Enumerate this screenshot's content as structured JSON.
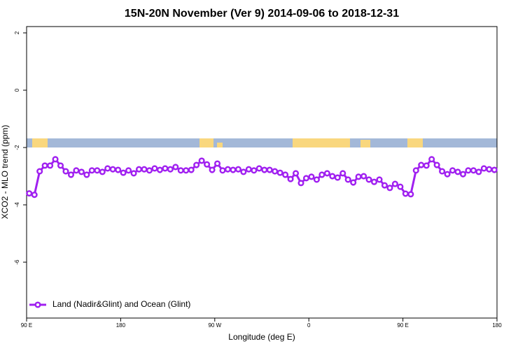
{
  "chart_data": {
    "type": "line",
    "title": "15N-20N November (Ver 9)   2014-09-06 to 2018-12-31",
    "x_label": "Longitude (deg E)",
    "y_label": "XCO2 - MLO trend (ppm)",
    "xlim": [
      90,
      540
    ],
    "xticks": [
      {
        "value": 90,
        "label": "90 E"
      },
      {
        "value": 180,
        "label": "180"
      },
      {
        "value": 270,
        "label": "90 W"
      },
      {
        "value": 360,
        "label": "0"
      },
      {
        "value": 450,
        "label": "90 E"
      },
      {
        "value": 540,
        "label": "180"
      }
    ],
    "ylim": [
      -7.95,
      2.22
    ],
    "yticks": [
      2,
      0,
      -2,
      -4,
      -6
    ],
    "legend": "bottom-left",
    "x": [
      92.5,
      97.5,
      102.5,
      107.5,
      112.5,
      117.5,
      122.5,
      127.5,
      132.5,
      137.5,
      142.5,
      147.5,
      152.5,
      157.5,
      162.5,
      167.5,
      172.5,
      177.5,
      182.5,
      187.5,
      192.5,
      197.5,
      202.5,
      207.5,
      212.5,
      217.5,
      222.5,
      227.5,
      232.5,
      237.5,
      242.5,
      247.5,
      252.5,
      257.5,
      262.5,
      267.5,
      272.5,
      277.5,
      282.5,
      287.5,
      292.5,
      297.5,
      302.5,
      307.5,
      312.5,
      317.5,
      322.5,
      327.5,
      332.5,
      337.5,
      342.5,
      347.5,
      352.5,
      357.5,
      362.5,
      367.5,
      372.5,
      377.5,
      382.5,
      387.5,
      392.5,
      397.5,
      402.5,
      407.5,
      412.5,
      417.5,
      422.5,
      427.5,
      432.5,
      437.5,
      442.5,
      447.5,
      452.5,
      457.5,
      462.5,
      467.5,
      472.5,
      477.5,
      482.5,
      487.5,
      492.5,
      497.5,
      502.5,
      507.5,
      512.5,
      517.5,
      522.5,
      527.5,
      532.5,
      537.5
    ],
    "series": [
      {
        "name": "Land (Nadir&Glint) and Ocean (Glint)",
        "color": "#a020f0",
        "values": [
          -3.6,
          -3.65,
          -2.83,
          -2.63,
          -2.63,
          -2.41,
          -2.63,
          -2.83,
          -2.95,
          -2.8,
          -2.85,
          -2.95,
          -2.8,
          -2.8,
          -2.85,
          -2.73,
          -2.76,
          -2.78,
          -2.88,
          -2.8,
          -2.9,
          -2.76,
          -2.76,
          -2.8,
          -2.73,
          -2.78,
          -2.73,
          -2.76,
          -2.68,
          -2.8,
          -2.8,
          -2.78,
          -2.61,
          -2.46,
          -2.59,
          -2.78,
          -2.56,
          -2.8,
          -2.76,
          -2.78,
          -2.76,
          -2.85,
          -2.76,
          -2.8,
          -2.73,
          -2.78,
          -2.78,
          -2.83,
          -2.88,
          -2.95,
          -3.1,
          -2.9,
          -3.24,
          -3.07,
          -3.02,
          -3.12,
          -2.95,
          -2.9,
          -3.0,
          -3.05,
          -2.9,
          -3.12,
          -3.22,
          -3.02,
          -3.0,
          -3.12,
          -3.2,
          -3.12,
          -3.32,
          -3.41,
          -3.27,
          -3.37,
          -3.61,
          -3.63,
          -2.8,
          -2.61,
          -2.63,
          -2.41,
          -2.61,
          -2.83,
          -2.93,
          -2.8,
          -2.85,
          -2.93,
          -2.8,
          -2.8,
          -2.85,
          -2.73,
          -2.76,
          -2.78
        ]
      }
    ]
  }
}
